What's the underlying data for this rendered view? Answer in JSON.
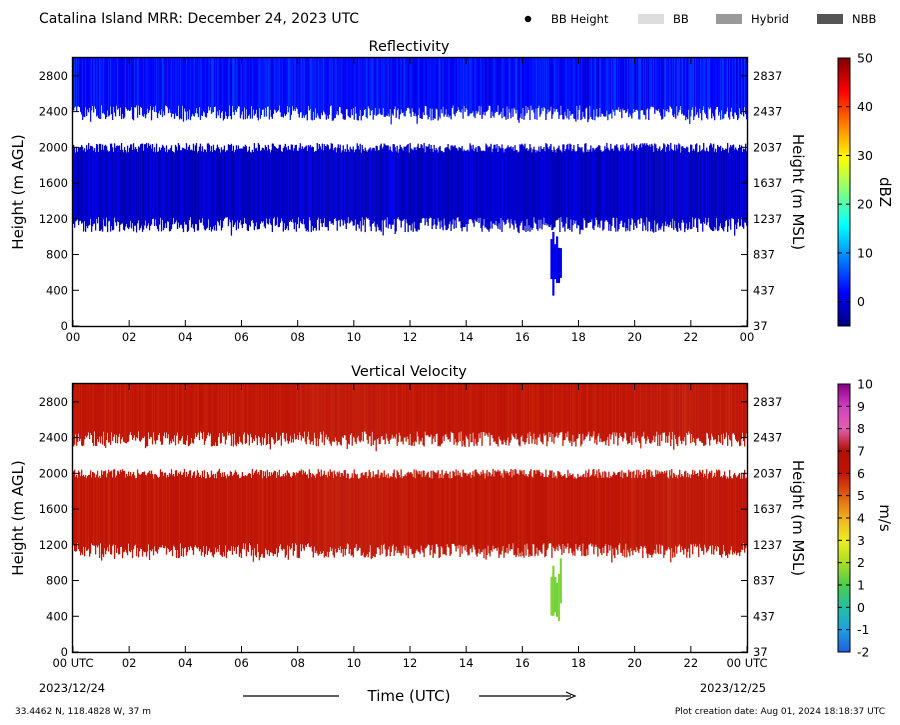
{
  "header": {
    "title": "Catalina Island MRR:  December 24, 2023 UTC",
    "legend": [
      {
        "label": "BB Height",
        "kind": "dot",
        "color": "#000000"
      },
      {
        "label": "BB",
        "kind": "swatch",
        "color": "#dddddd"
      },
      {
        "label": "Hybrid",
        "kind": "swatch",
        "color": "#999999"
      },
      {
        "label": "NBB",
        "kind": "swatch",
        "color": "#555555"
      }
    ]
  },
  "footer": {
    "location": "33.4462 N, 118.4828 W, 37 m",
    "creation": "Plot creation date: Aug 01, 2024 18:18:37 UTC",
    "time_label": "Time (UTC)",
    "start_tick": "00 UTC",
    "start_date": "2023/12/24",
    "end_tick": "00 UTC",
    "end_date": "2023/12/25"
  },
  "chart_data": [
    {
      "type": "heatmap",
      "title": "Reflectivity",
      "ylabel": "Height (m AGL)",
      "ylabel_right": "Height (m MSL)",
      "colorbar_label": "dBZ",
      "xlim": [
        0,
        24
      ],
      "ylim": [
        0,
        3000
      ],
      "xticks": [
        "00",
        "02",
        "04",
        "06",
        "08",
        "10",
        "12",
        "14",
        "16",
        "18",
        "20",
        "22",
        "00"
      ],
      "yticks": [
        0,
        400,
        800,
        1200,
        1600,
        2000,
        2400,
        2800
      ],
      "yticks_right": [
        37,
        437,
        837,
        1237,
        1637,
        2037,
        2437,
        2837
      ],
      "colorbar_range": [
        -5,
        50
      ],
      "colorbar_ticks": [
        0,
        10,
        20,
        30,
        40,
        50
      ],
      "colormap": [
        "#00007f",
        "#0000ff",
        "#0080ff",
        "#00ffff",
        "#80ff80",
        "#ffff00",
        "#ff8000",
        "#ff0000",
        "#7f0000"
      ],
      "layers": [
        {
          "name": "upper echo layer",
          "height_range": [
            2300,
            3000
          ],
          "value_dbz": [
            0,
            5
          ],
          "time_range": [
            0,
            24
          ]
        },
        {
          "name": "main echo layer",
          "height_range": [
            1050,
            2050
          ],
          "value_dbz": [
            -3,
            1
          ],
          "time_range": [
            0,
            24
          ]
        },
        {
          "name": "near-surface streak",
          "height_range": [
            300,
            1100
          ],
          "value_dbz": [
            -2,
            2
          ],
          "time_range": [
            17.0,
            17.4
          ]
        }
      ]
    },
    {
      "type": "heatmap",
      "title": "Vertical Velocity",
      "ylabel": "Height (m AGL)",
      "ylabel_right": "Height (m MSL)",
      "colorbar_label": "m/s",
      "xlim": [
        0,
        24
      ],
      "ylim": [
        0,
        3000
      ],
      "xticks": [
        "00",
        "02",
        "04",
        "06",
        "08",
        "10",
        "12",
        "14",
        "16",
        "18",
        "20",
        "22",
        "00"
      ],
      "yticks": [
        0,
        400,
        800,
        1200,
        1600,
        2000,
        2400,
        2800
      ],
      "yticks_right": [
        37,
        437,
        837,
        1237,
        1637,
        2037,
        2437,
        2837
      ],
      "colorbar_range": [
        -2,
        10
      ],
      "colorbar_ticks": [
        -2,
        -1,
        0,
        1,
        2,
        3,
        4,
        5,
        6,
        7,
        8,
        9,
        10
      ],
      "colormap": [
        "#1f5fe0",
        "#1f9fe0",
        "#22c0a0",
        "#4ecb4e",
        "#aadd22",
        "#eeee22",
        "#f0b020",
        "#e06010",
        "#c01508",
        "#b01000",
        "#e060b0",
        "#d040c0",
        "#880088"
      ],
      "layers": [
        {
          "name": "upper echo layer",
          "height_range": [
            2300,
            3000
          ],
          "value_ms": 6,
          "time_range": [
            0,
            24
          ]
        },
        {
          "name": "main echo layer",
          "height_range": [
            1050,
            2050
          ],
          "value_ms": 6,
          "time_range": [
            0,
            24
          ]
        },
        {
          "name": "near-surface streak",
          "height_range": [
            300,
            1100
          ],
          "value_ms": 1.5,
          "time_range": [
            17.0,
            17.4
          ]
        }
      ]
    }
  ]
}
